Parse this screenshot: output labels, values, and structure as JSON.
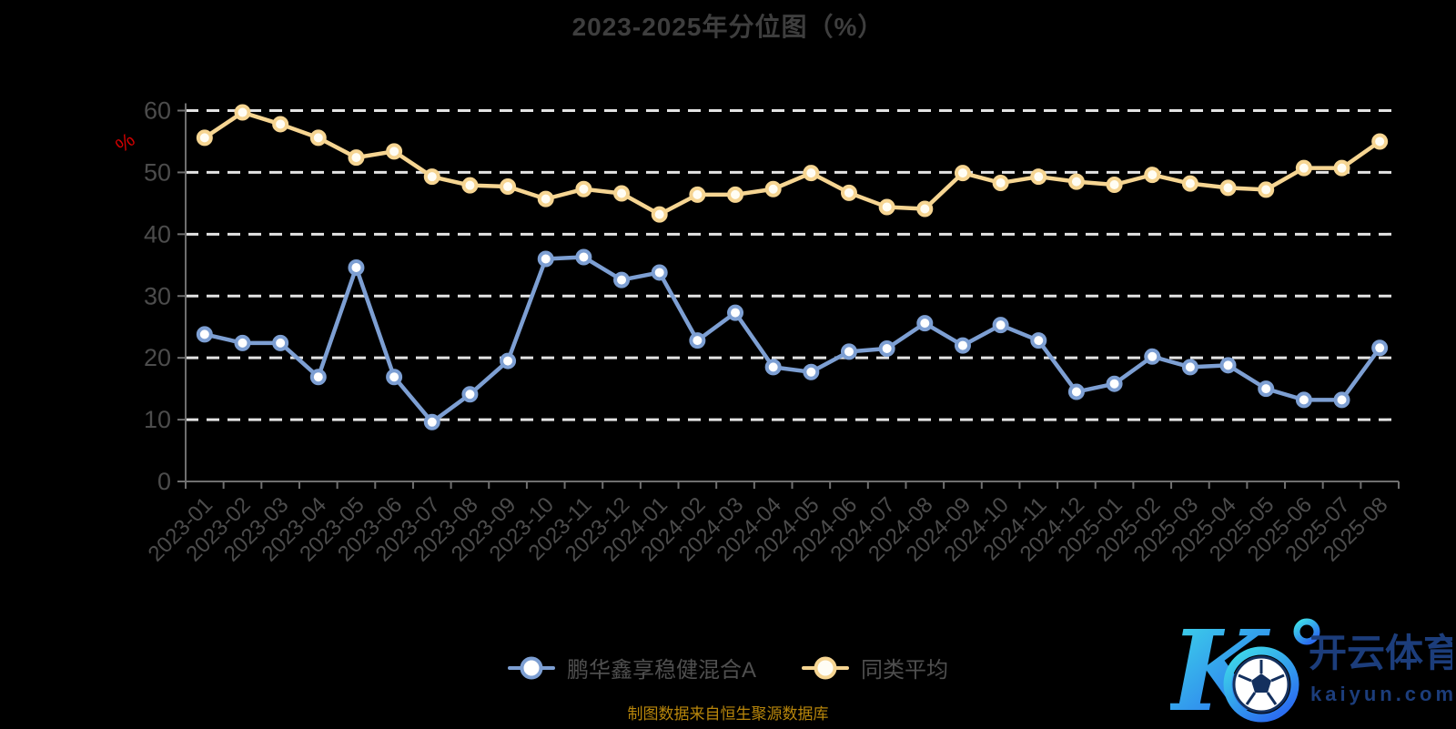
{
  "title": "2023-2025年分位图（%）",
  "y_axis_unit": "%",
  "caption": "制图数据来自恒生聚源数据库",
  "legend": {
    "item1": {
      "label": "鹏华鑫享稳健混合A",
      "color": "#7d9fd3",
      "dot_fill": "#ffffff"
    },
    "item2": {
      "label": "同类平均",
      "color": "#f6d592",
      "dot_fill": "#fffdf4"
    }
  },
  "watermark": {
    "letter": "K",
    "brand_cn": "开云体育",
    "brand_domain": "kaiyun.com",
    "navy": "#1c3d7b",
    "gradient_start": "#3fe0e8",
    "gradient_end": "#2b6ef0"
  },
  "colors": {
    "background": "#000000",
    "title_text": "#3e3e3e",
    "axis_line": "#6f6f6f",
    "axis_label": "#4c4c4c",
    "gridline": "#e3e3e3",
    "unit_red": "#d40000",
    "series_fund": "#7d9fd3",
    "series_average": "#f6d592",
    "caption_text": "#b8860b"
  },
  "chart_data": {
    "type": "line",
    "title": "2023-2025年分位图（%）",
    "ylabel": "%",
    "xlabel": "",
    "ylim": [
      0,
      60
    ],
    "y_ticks": [
      0,
      10,
      20,
      30,
      40,
      50,
      60
    ],
    "grid": "horizontal-dashed-white",
    "legend_position": "bottom-center",
    "x_label_rotation": 45,
    "categories": [
      "2023-01",
      "2023-02",
      "2023-03",
      "2023-04",
      "2023-05",
      "2023-06",
      "2023-07",
      "2023-08",
      "2023-09",
      "2023-10",
      "2023-11",
      "2023-12",
      "2024-01",
      "2024-02",
      "2024-03",
      "2024-04",
      "2024-05",
      "2024-06",
      "2024-07",
      "2024-08",
      "2024-09",
      "2024-10",
      "2024-11",
      "2024-12",
      "2025-01",
      "2025-02",
      "2025-03",
      "2025-04",
      "2025-05",
      "2025-06",
      "2025-07",
      "2025-08"
    ],
    "series": [
      {
        "name": "鹏华鑫享稳健混合A",
        "color": "#7d9fd3",
        "marker_fill": "#ffffff",
        "values": [
          23.8,
          22.4,
          22.4,
          16.9,
          34.6,
          16.9,
          9.6,
          14.1,
          19.5,
          36.0,
          36.3,
          32.6,
          33.8,
          22.8,
          27.3,
          18.5,
          17.7,
          21.0,
          21.5,
          25.6,
          22.0,
          25.3,
          22.8,
          14.5,
          15.8,
          20.2,
          18.5,
          18.8,
          15.0,
          13.2,
          13.2,
          21.6
        ]
      },
      {
        "name": "同类平均",
        "color": "#f6d592",
        "marker_fill": "#fffdf4",
        "values": [
          55.6,
          59.7,
          57.8,
          55.6,
          52.4,
          53.4,
          49.3,
          47.9,
          47.7,
          45.7,
          47.3,
          46.6,
          43.2,
          46.4,
          46.4,
          47.3,
          49.9,
          46.7,
          44.4,
          44.1,
          49.9,
          48.3,
          49.3,
          48.5,
          48.0,
          49.6,
          48.2,
          47.5,
          47.2,
          50.7,
          50.7,
          55.0
        ]
      }
    ]
  }
}
